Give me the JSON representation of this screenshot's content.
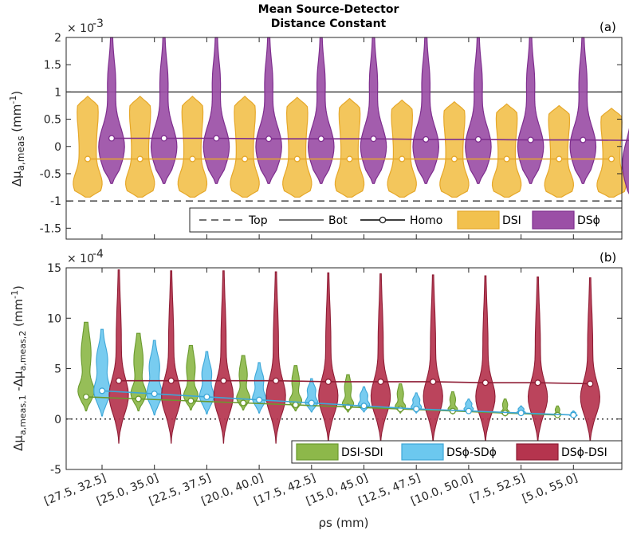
{
  "chart_data": [
    {
      "type": "violin",
      "panel_label": "(a)",
      "title_lines": [
        "Mean Source-Detector",
        "Distance Constant"
      ],
      "scale_label": "× 10",
      "scale_exponent": "-3",
      "ylim": [
        -1.7,
        2.0
      ],
      "yticks": [
        -1.5,
        -1,
        -0.5,
        0,
        0.5,
        1,
        1.5,
        2
      ],
      "ytick_labels": [
        "-1.5",
        "-1",
        "-0.5",
        "0",
        "0.5",
        "1",
        "1.5",
        "2"
      ],
      "ylabel_parts": [
        "Δμ",
        "a,meas",
        "(mm",
        "-1",
        ")"
      ],
      "reference_lines": {
        "top": -1,
        "bot": 1
      },
      "legend": {
        "position": "bottom-right",
        "entries": [
          {
            "label": "Top",
            "kind": "dashed"
          },
          {
            "label": "Bot",
            "kind": "solid"
          },
          {
            "label": "Homo",
            "kind": "marker-line"
          },
          {
            "label": "DSI",
            "kind": "patch",
            "color": "#f2c14e"
          },
          {
            "label": "DSϕ",
            "kind": "patch",
            "color": "#9b4fa6"
          }
        ]
      },
      "series": [
        {
          "name": "DSI",
          "color": "#f2c14e",
          "edge": "#e6a82a",
          "homo": [
            -0.23,
            -0.23,
            -0.23,
            -0.23,
            -0.23,
            -0.23,
            -0.23,
            -0.23,
            -0.23,
            -0.23,
            -0.23
          ],
          "ranges": [
            [
              -0.93,
              0.92
            ],
            [
              -0.93,
              0.92
            ],
            [
              -0.93,
              0.92
            ],
            [
              -0.93,
              0.92
            ],
            [
              -0.93,
              0.9
            ],
            [
              -0.93,
              0.88
            ],
            [
              -0.93,
              0.85
            ],
            [
              -0.93,
              0.82
            ],
            [
              -0.93,
              0.78
            ],
            [
              -0.93,
              0.75
            ],
            [
              -0.93,
              0.7
            ]
          ]
        },
        {
          "name": "DSϕ",
          "color": "#9b4fa6",
          "edge": "#7e2e8e",
          "homo": [
            0.15,
            0.15,
            0.15,
            0.14,
            0.14,
            0.14,
            0.13,
            0.13,
            0.12,
            0.12,
            0.11
          ],
          "ranges": [
            [
              -0.68,
              2.0
            ],
            [
              -0.68,
              2.0
            ],
            [
              -0.68,
              2.0
            ],
            [
              -0.68,
              2.0
            ],
            [
              -0.68,
              2.0
            ],
            [
              -0.68,
              2.0
            ],
            [
              -0.68,
              2.0
            ],
            [
              -0.68,
              2.0
            ],
            [
              -0.68,
              2.0
            ],
            [
              -0.68,
              2.0
            ],
            [
              -1.1,
              2.0
            ]
          ]
        }
      ]
    },
    {
      "type": "violin",
      "panel_label": "(b)",
      "scale_label": "× 10",
      "scale_exponent": "-4",
      "ylim": [
        -5,
        15
      ],
      "yticks": [
        -5,
        0,
        5,
        10,
        15
      ],
      "ytick_labels": [
        "-5",
        "0",
        "5",
        "10",
        "15"
      ],
      "ylabel_parts": [
        "Δμ",
        "a,meas,1",
        " -Δμ",
        "a,meas,2",
        "(mm",
        "-1",
        ")"
      ],
      "zero_line": 0,
      "categories": [
        "[27.5, 32.5]",
        "[25.0, 35.0]",
        "[22.5, 37.5]",
        "[20.0, 40.0]",
        "[17.5, 42.5]",
        "[15.0, 45.0]",
        "[12.5, 47.5]",
        "[10.0, 50.0]",
        "[7.5, 52.5]",
        "[5.0, 55.0]"
      ],
      "xlabel": "ρs (mm)",
      "legend": {
        "position": "bottom-right",
        "entries": [
          {
            "label": "DSI-SDI",
            "color": "#8db84a"
          },
          {
            "label": "DSϕ-SDϕ",
            "color": "#6cc8ef"
          },
          {
            "label": "DSϕ-DSI",
            "color": "#b5344e"
          }
        ]
      },
      "series": [
        {
          "name": "DSI-SDI",
          "color": "#8db84a",
          "edge": "#6a9a2e",
          "homo": [
            2.2,
            2.0,
            1.8,
            1.6,
            1.4,
            1.2,
            1.0,
            0.8,
            0.6,
            0.4
          ],
          "ranges": [
            [
              0.8,
              9.6
            ],
            [
              0.8,
              8.5
            ],
            [
              0.9,
              7.3
            ],
            [
              0.9,
              6.3
            ],
            [
              0.8,
              5.3
            ],
            [
              0.7,
              4.4
            ],
            [
              0.6,
              3.5
            ],
            [
              0.5,
              2.7
            ],
            [
              0.3,
              2.0
            ],
            [
              0.2,
              1.3
            ]
          ]
        },
        {
          "name": "DSϕ-SDϕ",
          "color": "#6cc8ef",
          "edge": "#3da7d8",
          "homo": [
            2.8,
            2.5,
            2.2,
            1.9,
            1.6,
            1.3,
            1.0,
            0.8,
            0.6,
            0.4
          ],
          "ranges": [
            [
              0.3,
              8.9
            ],
            [
              0.4,
              7.8
            ],
            [
              0.5,
              6.7
            ],
            [
              0.6,
              5.6
            ],
            [
              0.7,
              4.0
            ],
            [
              0.7,
              3.2
            ],
            [
              0.6,
              2.6
            ],
            [
              0.6,
              2.0
            ],
            [
              0.4,
              1.3
            ],
            [
              0.2,
              0.8
            ]
          ]
        },
        {
          "name": "DSϕ-DSI",
          "color": "#b5344e",
          "edge": "#8f1d35",
          "homo": [
            3.8,
            3.8,
            3.8,
            3.8,
            3.7,
            3.7,
            3.7,
            3.6,
            3.6,
            3.5
          ],
          "ranges": [
            [
              -2.4,
              14.8
            ],
            [
              -2.4,
              14.7
            ],
            [
              -2.4,
              14.7
            ],
            [
              -2.4,
              14.6
            ],
            [
              -2.4,
              14.5
            ],
            [
              -2.4,
              14.4
            ],
            [
              -2.4,
              14.3
            ],
            [
              -2.4,
              14.2
            ],
            [
              -2.4,
              14.1
            ],
            [
              -2.4,
              14.0
            ]
          ]
        }
      ]
    }
  ]
}
